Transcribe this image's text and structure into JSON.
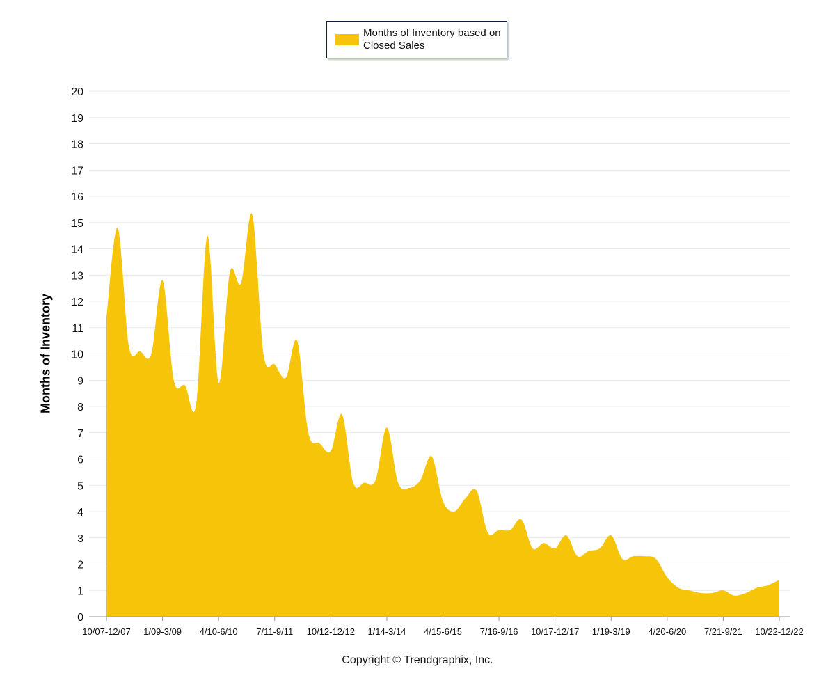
{
  "legend": {
    "label": "Months of Inventory based on Closed Sales"
  },
  "copyright": "Copyright © Trendgraphix, Inc.",
  "colors": {
    "area": "#f6c408",
    "grid": "#e8e8e8",
    "axis": "#999999"
  },
  "chart_data": {
    "type": "area",
    "title": "",
    "xlabel": "",
    "ylabel": "Months of Inventory",
    "ylim": [
      0,
      20
    ],
    "yticks": [
      0,
      1,
      2,
      3,
      4,
      5,
      6,
      7,
      8,
      9,
      10,
      11,
      12,
      13,
      14,
      15,
      16,
      17,
      18,
      19,
      20
    ],
    "grid": true,
    "legend_position": "top-center",
    "series": [
      {
        "name": "Months of Inventory based on Closed Sales",
        "values": [
          11.4,
          14.8,
          10.3,
          10.1,
          10.0,
          12.8,
          9.0,
          8.8,
          8.1,
          14.5,
          8.9,
          13.1,
          12.7,
          15.3,
          10.0,
          9.6,
          9.1,
          10.5,
          7.0,
          6.6,
          6.3,
          7.7,
          5.1,
          5.1,
          5.2,
          7.2,
          5.1,
          4.9,
          5.2,
          6.1,
          4.4,
          4.0,
          4.5,
          4.8,
          3.2,
          3.3,
          3.3,
          3.7,
          2.6,
          2.8,
          2.6,
          3.1,
          2.3,
          2.5,
          2.6,
          3.1,
          2.2,
          2.3,
          2.3,
          2.2,
          1.5,
          1.1,
          1.0,
          0.9,
          0.9,
          1.0,
          0.8,
          0.9,
          1.1,
          1.2,
          1.4
        ]
      }
    ],
    "x_labels": [
      "10/07-12/07",
      "1/09-3/09",
      "4/10-6/10",
      "7/11-9/11",
      "10/12-12/12",
      "1/14-3/14",
      "4/15-6/15",
      "7/16-9/16",
      "10/17-12/17",
      "1/19-3/19",
      "4/20-6/20",
      "7/21-9/21",
      "10/22-12/22"
    ],
    "x_label_every": 5
  }
}
